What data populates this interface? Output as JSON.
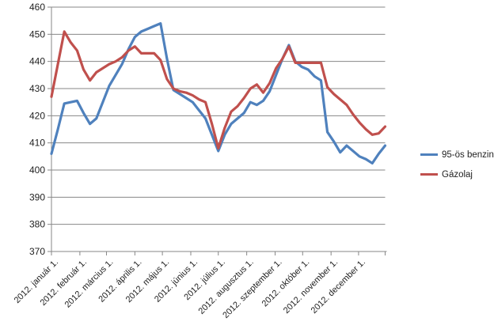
{
  "chart_data": {
    "type": "line",
    "title": "",
    "xlabel": "",
    "ylabel": "",
    "background": "#ffffff",
    "grid": "horizontal",
    "grid_color": "#878787",
    "axis_color": "#878787",
    "text_color": "#1f1f1f",
    "legend_position": "right",
    "x_axis": {
      "unit": "weekly data points through year 2012",
      "categories": [
        "2012. január 1.",
        "2012. február 1.",
        "2012. március 1.",
        "2012. április 1.",
        "2012. május 1.",
        "2012. június 1.",
        "2012. július 1.",
        "2012. augusztus 1.",
        "2012. szeptember 1.",
        "2012. október 1.",
        "2012. november 1.",
        "2012. december 1."
      ],
      "month_start_days": [
        0,
        31,
        60,
        91,
        121,
        152,
        182,
        213,
        244,
        274,
        305,
        335
      ],
      "axis_end_day": 364,
      "point_spacing_days": 7
    },
    "y_axis": {
      "min": 370,
      "max": 460,
      "tick_step": 10,
      "tick_labels": [
        "370",
        "380",
        "390",
        "400",
        "410",
        "420",
        "430",
        "440",
        "450",
        "460"
      ]
    },
    "series": [
      {
        "key": "benzin",
        "name": "95-ös benzin",
        "color": "#4F81BD",
        "values": [
          406,
          415,
          424.5,
          425,
          425.5,
          421,
          417,
          419,
          425,
          431,
          435,
          439,
          444.5,
          449,
          451,
          452,
          453,
          454,
          441,
          429.5,
          428,
          426.5,
          425,
          422,
          419,
          413,
          407,
          413,
          417,
          419,
          421,
          425,
          424,
          425.5,
          429,
          435,
          441,
          446,
          440,
          438,
          437,
          434.5,
          433,
          414,
          410.5,
          406.5,
          409,
          407,
          405,
          404,
          402.5,
          406,
          409
        ]
      },
      {
        "key": "gazolaj",
        "name": "Gázolaj",
        "color": "#C0504D",
        "values": [
          427,
          439,
          451,
          447,
          444,
          437,
          433,
          436,
          437.5,
          439,
          440,
          441.5,
          444,
          445.5,
          443,
          443,
          443,
          440.5,
          433.5,
          430,
          429,
          428.5,
          427.5,
          426,
          425,
          417,
          408,
          415.5,
          421.5,
          423.5,
          426.5,
          430,
          431.5,
          428.5,
          432,
          437.5,
          441,
          445.5,
          439.5,
          439.5,
          439.5,
          439.5,
          439.5,
          430.5,
          428,
          426,
          424,
          420.5,
          417.5,
          415,
          413,
          413.5,
          416
        ]
      }
    ]
  },
  "legend": {
    "items": [
      {
        "label": "95-ös benzin"
      },
      {
        "label": "Gázolaj"
      }
    ]
  }
}
